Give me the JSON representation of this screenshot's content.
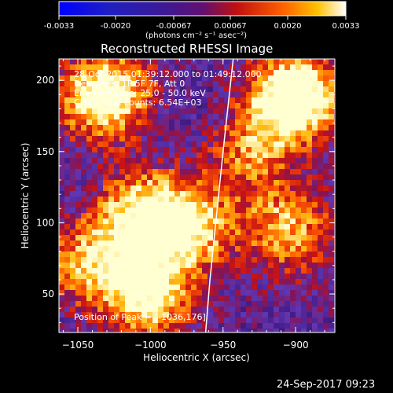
{
  "colorbar": {
    "ticks": [
      "-0.0033",
      "-0.0020",
      "-0.00067",
      "0.00067",
      "0.0020",
      "0.0033"
    ],
    "unit_text": "(photons cm⁻² s⁻¹ asec⁻²)"
  },
  "chart_data": {
    "type": "heatmap",
    "title": "Reconstructed RHESSI Image",
    "xlabel": "Heliocentric X (arcsec)",
    "ylabel": "Heliocentric Y (arcsec)",
    "xlim": [
      -1063,
      -873
    ],
    "ylim": [
      23,
      215
    ],
    "xticks": [
      -1050,
      -1000,
      -950,
      -900
    ],
    "yticks": [
      50,
      100,
      150,
      200
    ],
    "colorbar_range": [
      -0.0033,
      0.0033
    ],
    "bright_regions": [
      {
        "x": -1030,
        "y": 190,
        "level": 0.85
      },
      {
        "x": -900,
        "y": 190,
        "level": 0.95
      },
      {
        "x": -905,
        "y": 100,
        "level": 0.6
      },
      {
        "x": -975,
        "y": 95,
        "level": 0.7
      },
      {
        "x": -1010,
        "y": 108,
        "level": 0.6
      },
      {
        "x": -1000,
        "y": 50,
        "level": 0.8
      },
      {
        "x": -1040,
        "y": 75,
        "level": 0.5
      },
      {
        "x": -930,
        "y": 150,
        "level": 0.45
      }
    ],
    "limb_curve": [
      [
        -962,
        23
      ],
      [
        -959,
        60
      ],
      [
        -955,
        100
      ],
      [
        -950,
        150
      ],
      [
        -943,
        215
      ]
    ],
    "info": {
      "time_range": "28-Oct-2015 01:39:12.000 to 01:49:12.000",
      "detectors": "Detectors: 1F 5F 7F, Att 0",
      "energy": "Energy Range: 25.0 - 50.0 keV",
      "clean": "Clean      Total counts: 6.54E+03",
      "peak": "Position of Peak = [-1036,176]"
    }
  },
  "footer": {
    "date": "24-Sep-2017 09:23"
  }
}
